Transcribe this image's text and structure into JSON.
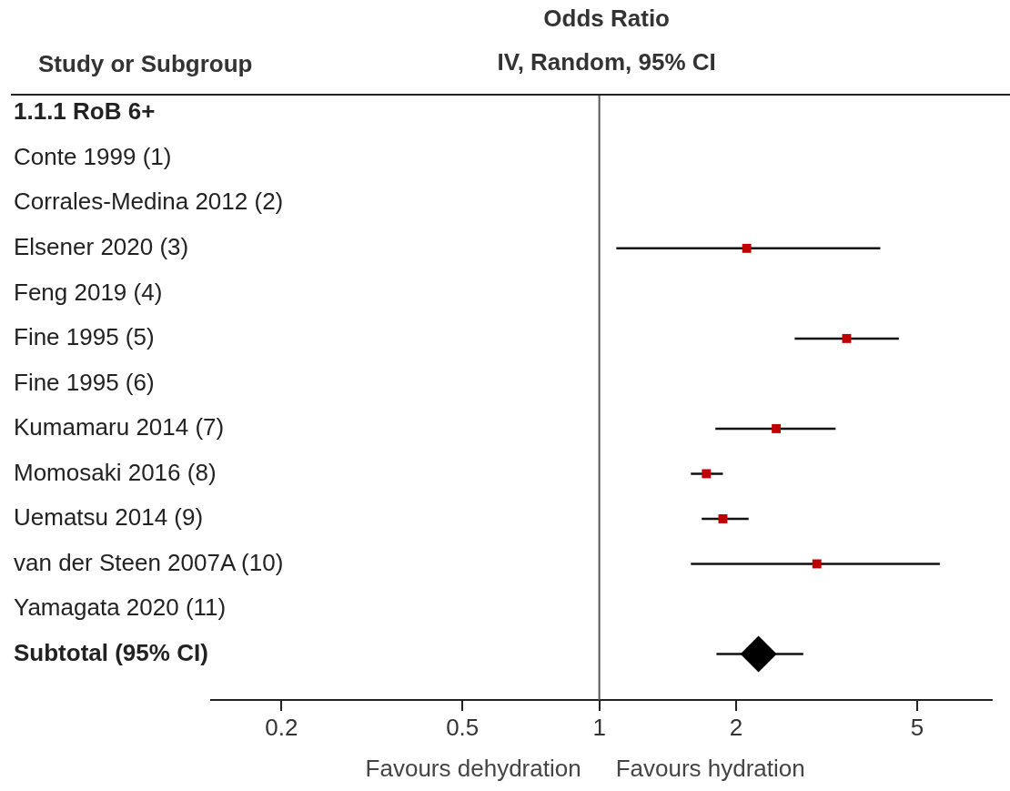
{
  "chart_data": {
    "type": "scatter",
    "orientation": "horizontal",
    "title": "Odds Ratio",
    "subtitle": "IV, Random, 95% CI",
    "ylabel": "Study or Subgroup",
    "annotations": [
      "Favours dehydration",
      "Favours hydration"
    ],
    "categories": [
      "1.1.1 RoB 6+",
      "Conte 1999 (1)",
      "Corrales-Medina 2012 (2)",
      "Elsener 2020 (3)",
      "Feng 2019 (4)",
      "Fine 1995 (5)",
      "Fine 1995 (6)",
      "Kumamaru 2014 (7)",
      "Momosaki 2016 (8)",
      "Uematsu 2014 (9)",
      "van der Steen 2007A (10)",
      "Yamagata 2020 (11)",
      "Subtotal (95% CI)"
    ],
    "series": [
      {
        "color": "#c00000",
        "marker": "square",
        "values": [
          null,
          null,
          null,
          2.11,
          null,
          3.5,
          null,
          2.45,
          1.72,
          1.87,
          3.01,
          null,
          null
        ],
        "errors": [
          null,
          null,
          null,
          [
            1.09,
            4.15
          ],
          null,
          [
            2.69,
            4.56
          ],
          null,
          [
            1.8,
            3.31
          ],
          [
            1.59,
            1.87
          ],
          [
            1.68,
            2.13
          ],
          [
            1.59,
            5.61
          ],
          null,
          null
        ]
      },
      {
        "color": "#000000",
        "marker": "diamond",
        "values": [
          null,
          null,
          null,
          null,
          null,
          null,
          null,
          null,
          null,
          null,
          null,
          null,
          2.24
        ],
        "errors": [
          null,
          null,
          null,
          null,
          null,
          null,
          null,
          null,
          null,
          null,
          null,
          null,
          [
            1.81,
            2.81
          ]
        ]
      }
    ],
    "log": "x",
    "xlim": [
      0.14,
      7.3
    ],
    "xticks": [
      0.2,
      0.5,
      1,
      2,
      5
    ],
    "ref_lines": [
      {
        "axis": "x",
        "value": 1,
        "color": "#555555"
      }
    ]
  }
}
